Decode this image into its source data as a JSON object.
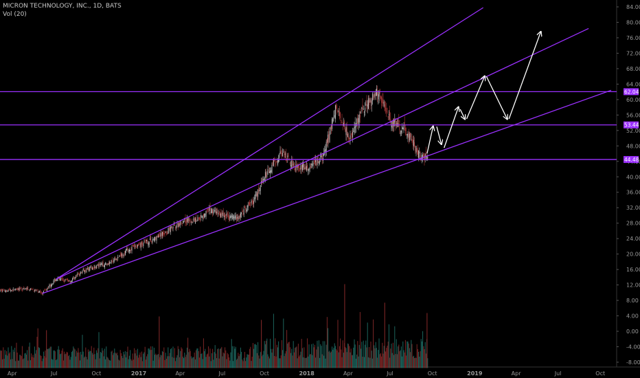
{
  "legend": {
    "symbol": "MICRON TECHNOLOGY, INC., 1D, BATS",
    "volume": "Vol (20)"
  },
  "colors": {
    "background": "#000000",
    "up_candle": "#c8c8c8",
    "down_candle": "#b03a3a",
    "vol_up": "#1f6f66",
    "vol_down": "#8a2a2a",
    "trendline": "#9b30ff",
    "arrow": "#ffffff",
    "label_bg": "#9b30ff"
  },
  "chart_data": {
    "type": "candlestick",
    "x_axis_labels": [
      "Apr",
      "Jul",
      "Oct",
      "2017",
      "Apr",
      "Jul",
      "Oct",
      "2018",
      "Apr",
      "Jul",
      "Oct",
      "2019",
      "Apr",
      "Jul",
      "Oct"
    ],
    "y_axis_labels": [
      "84.00",
      "80.00",
      "76.00",
      "72.00",
      "68.00",
      "64.00",
      "60.00",
      "56.00",
      "52.00",
      "48.00",
      "44.00",
      "40.00",
      "36.00",
      "32.00",
      "28.00",
      "24.00",
      "20.00",
      "16.00",
      "12.00",
      "8.00",
      "4.00",
      "0.00",
      "-4.00",
      "-8.00"
    ],
    "price_levels": [
      {
        "label": "62.04",
        "value": 62.04
      },
      {
        "label": "53.44",
        "value": 53.44
      },
      {
        "label": "44.48",
        "value": 44.48
      }
    ],
    "price_path": [
      {
        "date": "2016-03",
        "price": 10.5
      },
      {
        "date": "2016-05",
        "price": 11.0
      },
      {
        "date": "2016-06",
        "price": 10.0
      },
      {
        "date": "2016-07",
        "price": 13.5
      },
      {
        "date": "2016-08",
        "price": 13.0
      },
      {
        "date": "2016-09",
        "price": 16.0
      },
      {
        "date": "2016-10",
        "price": 17.0
      },
      {
        "date": "2016-11",
        "price": 18.0
      },
      {
        "date": "2016-12",
        "price": 21.0
      },
      {
        "date": "2017-01",
        "price": 22.5
      },
      {
        "date": "2017-02",
        "price": 24.0
      },
      {
        "date": "2017-03",
        "price": 26.0
      },
      {
        "date": "2017-04",
        "price": 28.5
      },
      {
        "date": "2017-05",
        "price": 29.0
      },
      {
        "date": "2017-06",
        "price": 31.5
      },
      {
        "date": "2017-07",
        "price": 30.0
      },
      {
        "date": "2017-08",
        "price": 29.5
      },
      {
        "date": "2017-09",
        "price": 33.5
      },
      {
        "date": "2017-10",
        "price": 41.0
      },
      {
        "date": "2017-11",
        "price": 46.0
      },
      {
        "date": "2017-12",
        "price": 43.0
      },
      {
        "date": "2018-01",
        "price": 42.0
      },
      {
        "date": "2018-02",
        "price": 45.0
      },
      {
        "date": "2018-03",
        "price": 58.0
      },
      {
        "date": "2018-04",
        "price": 50.0
      },
      {
        "date": "2018-05",
        "price": 58.0
      },
      {
        "date": "2018-06",
        "price": 62.0
      },
      {
        "date": "2018-07",
        "price": 54.0
      },
      {
        "date": "2018-08",
        "price": 52.0
      },
      {
        "date": "2018-09",
        "price": 45.0
      }
    ],
    "trendlines": [
      {
        "name": "upper-channel",
        "from": {
          "date": "2016-07-01",
          "price": 13.5
        },
        "to": {
          "date": "2019-01-15",
          "price": 83.8
        }
      },
      {
        "name": "middle-channel",
        "from": {
          "date": "2016-07-01",
          "price": 13.5
        },
        "to": {
          "date": "2019-09-01",
          "price": 78.4
        }
      },
      {
        "name": "lower-channel",
        "from": {
          "date": "2016-06-01",
          "price": 9.8
        },
        "to": {
          "date": "2019-10-20",
          "price": 62.4
        }
      }
    ],
    "projection_arrows": [
      {
        "from": {
          "date": "2018-09-15",
          "price": 46.0
        },
        "to": {
          "date": "2018-09-28",
          "price": 53.0
        }
      },
      {
        "from": {
          "date": "2018-10-06",
          "price": 53.0
        },
        "to": {
          "date": "2018-10-16",
          "price": 48.5
        }
      },
      {
        "from": {
          "date": "2018-10-22",
          "price": 47.5
        },
        "to": {
          "date": "2018-11-22",
          "price": 58.0
        }
      },
      {
        "from": {
          "date": "2018-11-26",
          "price": 57.5
        },
        "to": {
          "date": "2018-12-06",
          "price": 55.0
        }
      },
      {
        "from": {
          "date": "2018-12-10",
          "price": 55.0
        },
        "to": {
          "date": "2019-01-18",
          "price": 66.0
        }
      },
      {
        "from": {
          "date": "2019-01-22",
          "price": 66.0
        },
        "to": {
          "date": "2019-03-08",
          "price": 55.0
        }
      },
      {
        "from": {
          "date": "2019-03-12",
          "price": 55.0
        },
        "to": {
          "date": "2019-05-20",
          "price": 77.5
        }
      }
    ],
    "volume": {
      "description": "daily volume histogram, mixed up/down bars"
    }
  }
}
